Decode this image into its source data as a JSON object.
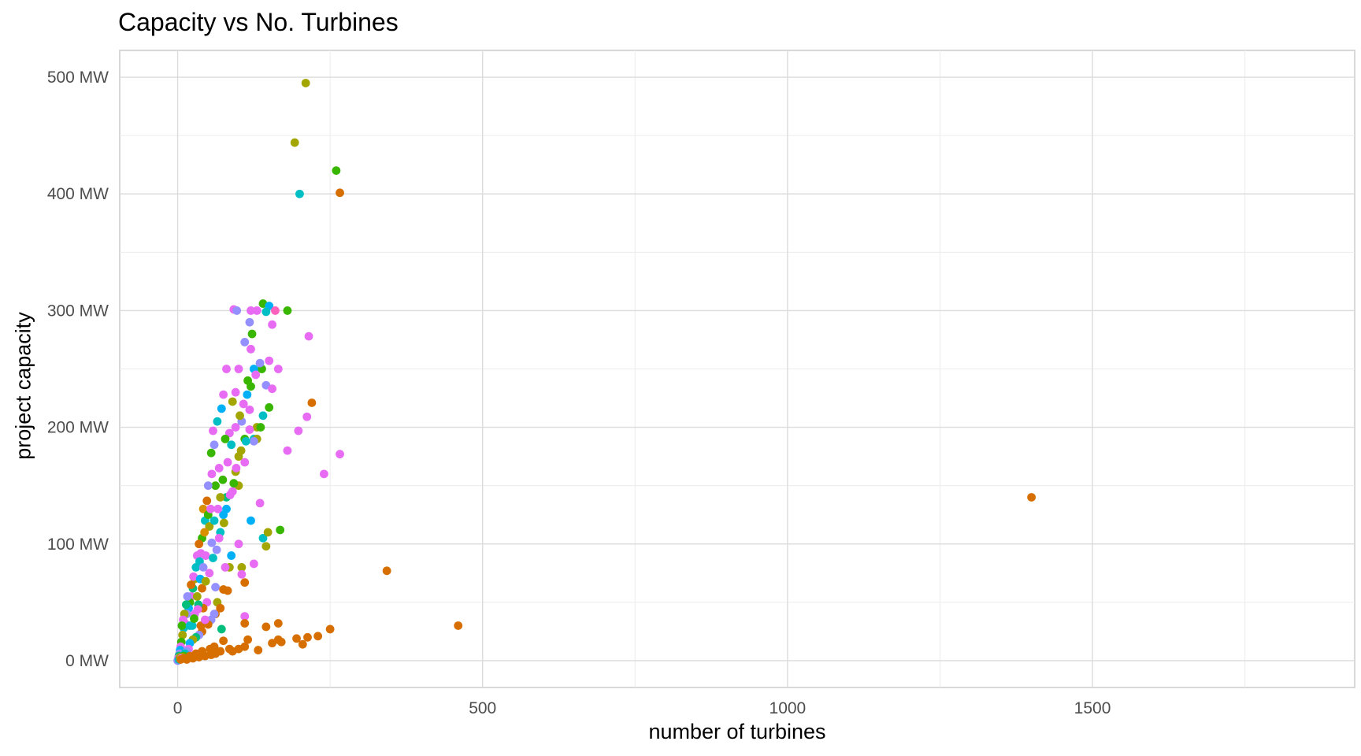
{
  "chart_data": {
    "type": "scatter",
    "title": "Capacity vs No. Turbines",
    "xlabel": "number of turbines",
    "ylabel": "project capacity",
    "xlim": [
      -95,
      1930
    ],
    "ylim": [
      -23,
      523
    ],
    "x_ticks": [
      0,
      500,
      1000,
      1500
    ],
    "x_tick_labels": [
      "0",
      "500",
      "1000",
      "1500"
    ],
    "y_ticks": [
      0,
      100,
      200,
      300,
      400,
      500
    ],
    "y_tick_labels": [
      "0 MW",
      "100 MW",
      "200 MW",
      "300 MW",
      "400 MW",
      "500 MW"
    ],
    "grid": true,
    "legend": "none",
    "palette": [
      "#f8766d",
      "#d89000",
      "#a3a500",
      "#39b600",
      "#00bf7d",
      "#00bfc4",
      "#00b0f6",
      "#9590ff",
      "#e76bf3",
      "#ff62bc",
      "#d66f00"
    ],
    "points": [
      [
        1400,
        140,
        "#d66f00"
      ],
      [
        460,
        30,
        "#d66f00"
      ],
      [
        343,
        77,
        "#d66f00"
      ],
      [
        210,
        495,
        "#a3a500"
      ],
      [
        192,
        444,
        "#a3a500"
      ],
      [
        260,
        420,
        "#39b600"
      ],
      [
        200,
        400,
        "#00bfc4"
      ],
      [
        266,
        401,
        "#d66f00"
      ],
      [
        180,
        300,
        "#39b600"
      ],
      [
        140,
        306,
        "#39b600"
      ],
      [
        150,
        304,
        "#00b0f6"
      ],
      [
        160,
        300,
        "#ff62bc"
      ],
      [
        145,
        299,
        "#00bfc4"
      ],
      [
        130,
        300,
        "#e76bf3"
      ],
      [
        120,
        300,
        "#e76bf3"
      ],
      [
        92,
        301,
        "#e76bf3"
      ],
      [
        97,
        300,
        "#9590ff"
      ],
      [
        215,
        278,
        "#e76bf3"
      ],
      [
        155,
        288,
        "#e76bf3"
      ],
      [
        118,
        290,
        "#9590ff"
      ],
      [
        110,
        273,
        "#9590ff"
      ],
      [
        122,
        280,
        "#39b600"
      ],
      [
        120,
        267,
        "#e76bf3"
      ],
      [
        150,
        257,
        "#e76bf3"
      ],
      [
        165,
        250,
        "#e76bf3"
      ],
      [
        138,
        250,
        "#39b600"
      ],
      [
        125,
        250,
        "#00b0f6"
      ],
      [
        100,
        250,
        "#e76bf3"
      ],
      [
        80,
        250,
        "#e76bf3"
      ],
      [
        145,
        236,
        "#9590ff"
      ],
      [
        155,
        233,
        "#e76bf3"
      ],
      [
        115,
        240,
        "#39b600"
      ],
      [
        95,
        230,
        "#e76bf3"
      ],
      [
        75,
        228,
        "#e76bf3"
      ],
      [
        220,
        221,
        "#d66f00"
      ],
      [
        212,
        209,
        "#e76bf3"
      ],
      [
        198,
        197,
        "#e76bf3"
      ],
      [
        180,
        180,
        "#e76bf3"
      ],
      [
        266,
        177,
        "#e76bf3"
      ],
      [
        240,
        160,
        "#e76bf3"
      ],
      [
        150,
        217,
        "#39b600"
      ],
      [
        140,
        210,
        "#00bfc4"
      ],
      [
        130,
        200,
        "#a3a500"
      ],
      [
        125,
        190,
        "#00bfc4"
      ],
      [
        118,
        215,
        "#e76bf3"
      ],
      [
        105,
        205,
        "#9590ff"
      ],
      [
        110,
        190,
        "#39b600"
      ],
      [
        100,
        175,
        "#a3a500"
      ],
      [
        90,
        222,
        "#a3a500"
      ],
      [
        85,
        195,
        "#e76bf3"
      ],
      [
        78,
        190,
        "#39b600"
      ],
      [
        72,
        216,
        "#00b0f6"
      ],
      [
        65,
        205,
        "#00bfc4"
      ],
      [
        60,
        185,
        "#9590ff"
      ],
      [
        55,
        178,
        "#39b600"
      ],
      [
        58,
        197,
        "#e76bf3"
      ],
      [
        68,
        165,
        "#e76bf3"
      ],
      [
        95,
        162,
        "#a3a500"
      ],
      [
        110,
        170,
        "#e76bf3"
      ],
      [
        100,
        150,
        "#a3a500"
      ],
      [
        90,
        145,
        "#e76bf3"
      ],
      [
        80,
        140,
        "#00bf7d"
      ],
      [
        75,
        125,
        "#00b0f6"
      ],
      [
        70,
        110,
        "#00bfc4"
      ],
      [
        62,
        150,
        "#39b600"
      ],
      [
        56,
        160,
        "#e76bf3"
      ],
      [
        50,
        150,
        "#9590ff"
      ],
      [
        48,
        137,
        "#d66f00"
      ],
      [
        42,
        130,
        "#d89000"
      ],
      [
        45,
        120,
        "#00bfc4"
      ],
      [
        52,
        115,
        "#a3a500"
      ],
      [
        40,
        105,
        "#39b600"
      ],
      [
        35,
        100,
        "#d66f00"
      ],
      [
        38,
        92,
        "#e76bf3"
      ],
      [
        32,
        90,
        "#e76bf3"
      ],
      [
        30,
        80,
        "#00bfc4"
      ],
      [
        28,
        70,
        "#a3a500"
      ],
      [
        25,
        62,
        "#00bf7d"
      ],
      [
        22,
        55,
        "#e76bf3"
      ],
      [
        20,
        50,
        "#39b600"
      ],
      [
        18,
        45,
        "#00b0f6"
      ],
      [
        15,
        40,
        "#9590ff"
      ],
      [
        12,
        32,
        "#e76bf3"
      ],
      [
        10,
        28,
        "#00bfc4"
      ],
      [
        8,
        22,
        "#a3a500"
      ],
      [
        6,
        16,
        "#39b600"
      ],
      [
        5,
        12,
        "#e76bf3"
      ],
      [
        4,
        9,
        "#00b0f6"
      ],
      [
        3,
        6,
        "#9590ff"
      ],
      [
        2,
        4,
        "#00bf7d"
      ],
      [
        1,
        2,
        "#e76bf3"
      ],
      [
        0,
        0,
        "#9590ff"
      ],
      [
        2,
        1,
        "#00bfc4"
      ],
      [
        4,
        3,
        "#a3a500"
      ],
      [
        88,
        90,
        "#00b0f6"
      ],
      [
        100,
        100,
        "#e76bf3"
      ],
      [
        85,
        80,
        "#a3a500"
      ],
      [
        78,
        80,
        "#e76bf3"
      ],
      [
        105,
        80,
        "#a3a500"
      ],
      [
        125,
        83,
        "#e76bf3"
      ],
      [
        110,
        67,
        "#d66f00"
      ],
      [
        105,
        74,
        "#e76bf3"
      ],
      [
        135,
        135,
        "#e76bf3"
      ],
      [
        120,
        120,
        "#00b0f6"
      ],
      [
        140,
        105,
        "#00bfc4"
      ],
      [
        148,
        110,
        "#a3a500"
      ],
      [
        145,
        98,
        "#a3a500"
      ],
      [
        168,
        112,
        "#39b600"
      ],
      [
        62,
        63,
        "#9590ff"
      ],
      [
        65,
        50,
        "#a3a500"
      ],
      [
        62,
        40,
        "#d66f00"
      ],
      [
        75,
        61,
        "#d66f00"
      ],
      [
        70,
        45,
        "#d66f00"
      ],
      [
        72,
        27,
        "#00bf7d"
      ],
      [
        60,
        40,
        "#9590ff"
      ],
      [
        55,
        35,
        "#9590ff"
      ],
      [
        48,
        50,
        "#e76bf3"
      ],
      [
        42,
        45,
        "#d66f00"
      ],
      [
        38,
        30,
        "#d66f00"
      ],
      [
        40,
        25,
        "#d66f00"
      ],
      [
        35,
        22,
        "#9590ff"
      ],
      [
        30,
        20,
        "#00bf7d"
      ],
      [
        25,
        18,
        "#a3a500"
      ],
      [
        20,
        15,
        "#00b0f6"
      ],
      [
        18,
        10,
        "#e76bf3"
      ],
      [
        15,
        8,
        "#9590ff"
      ],
      [
        12,
        6,
        "#00bfc4"
      ],
      [
        10,
        4,
        "#39b600"
      ],
      [
        8,
        3,
        "#a3a500"
      ],
      [
        6,
        2,
        "#e76bf3"
      ],
      [
        110,
        38,
        "#e76bf3"
      ],
      [
        110,
        32,
        "#d66f00"
      ],
      [
        145,
        29,
        "#d66f00"
      ],
      [
        165,
        32,
        "#d66f00"
      ],
      [
        250,
        27,
        "#d66f00"
      ],
      [
        230,
        21,
        "#d66f00"
      ],
      [
        213,
        20,
        "#d66f00"
      ],
      [
        195,
        19,
        "#d66f00"
      ],
      [
        205,
        14,
        "#d66f00"
      ],
      [
        165,
        18,
        "#d66f00"
      ],
      [
        155,
        15,
        "#d66f00"
      ],
      [
        170,
        16,
        "#d66f00"
      ],
      [
        132,
        9,
        "#d66f00"
      ],
      [
        115,
        18,
        "#d66f00"
      ],
      [
        110,
        12,
        "#d66f00"
      ],
      [
        100,
        10,
        "#d66f00"
      ],
      [
        85,
        10,
        "#d66f00"
      ],
      [
        75,
        17,
        "#d66f00"
      ],
      [
        70,
        8,
        "#d66f00"
      ],
      [
        60,
        12,
        "#d66f00"
      ],
      [
        55,
        5,
        "#d66f00"
      ],
      [
        45,
        4,
        "#d66f00"
      ],
      [
        40,
        8,
        "#d66f00"
      ],
      [
        35,
        3,
        "#d66f00"
      ],
      [
        30,
        6,
        "#d66f00"
      ],
      [
        25,
        2,
        "#d66f00"
      ],
      [
        20,
        4,
        "#d66f00"
      ],
      [
        15,
        1,
        "#d66f00"
      ],
      [
        10,
        2,
        "#d66f00"
      ],
      [
        5,
        1,
        "#d66f00"
      ],
      [
        53,
        10,
        "#d66f00"
      ],
      [
        62,
        6,
        "#d66f00"
      ],
      [
        90,
        8,
        "#d66f00"
      ],
      [
        50,
        31,
        "#d66f00"
      ],
      [
        45,
        35,
        "#e76bf3"
      ],
      [
        82,
        60,
        "#d66f00"
      ],
      [
        56,
        101,
        "#9590ff"
      ],
      [
        60,
        120,
        "#00bfc4"
      ],
      [
        66,
        130,
        "#e76bf3"
      ],
      [
        70,
        140,
        "#a3a500"
      ],
      [
        74,
        155,
        "#39b600"
      ],
      [
        82,
        170,
        "#e76bf3"
      ],
      [
        88,
        185,
        "#00bfc4"
      ],
      [
        95,
        200,
        "#e76bf3"
      ],
      [
        102,
        210,
        "#a3a500"
      ],
      [
        108,
        220,
        "#e76bf3"
      ],
      [
        114,
        228,
        "#00b0f6"
      ],
      [
        120,
        235,
        "#39b600"
      ],
      [
        128,
        245,
        "#e76bf3"
      ],
      [
        135,
        255,
        "#9590ff"
      ],
      [
        44,
        110,
        "#d89000"
      ],
      [
        50,
        125,
        "#39b600"
      ],
      [
        54,
        130,
        "#e76bf3"
      ],
      [
        36,
        85,
        "#00bfc4"
      ],
      [
        26,
        72,
        "#e76bf3"
      ],
      [
        22,
        65,
        "#d66f00"
      ],
      [
        16,
        55,
        "#9590ff"
      ],
      [
        14,
        48,
        "#00bf7d"
      ],
      [
        11,
        40,
        "#a3a500"
      ],
      [
        9,
        35,
        "#e76bf3"
      ],
      [
        7,
        30,
        "#39b600"
      ],
      [
        24,
        30,
        "#00bfc4"
      ],
      [
        28,
        40,
        "#e76bf3"
      ],
      [
        32,
        55,
        "#a3a500"
      ],
      [
        37,
        70,
        "#00b0f6"
      ],
      [
        42,
        80,
        "#9590ff"
      ],
      [
        46,
        90,
        "#e76bf3"
      ],
      [
        40,
        62,
        "#d66f00"
      ],
      [
        34,
        48,
        "#00bf7d"
      ],
      [
        130,
        190,
        "#a3a500"
      ],
      [
        136,
        200,
        "#39b600"
      ],
      [
        125,
        188,
        "#9590ff"
      ],
      [
        118,
        198,
        "#e76bf3"
      ],
      [
        112,
        188,
        "#00bfc4"
      ],
      [
        104,
        180,
        "#a3a500"
      ],
      [
        96,
        165,
        "#e76bf3"
      ],
      [
        92,
        152,
        "#39b600"
      ],
      [
        86,
        142,
        "#e76bf3"
      ],
      [
        80,
        130,
        "#00b0f6"
      ],
      [
        76,
        118,
        "#a3a500"
      ],
      [
        68,
        105,
        "#e76bf3"
      ],
      [
        64,
        95,
        "#9590ff"
      ],
      [
        58,
        88,
        "#00bfc4"
      ],
      [
        52,
        75,
        "#e76bf3"
      ],
      [
        46,
        68,
        "#a3a500"
      ],
      [
        20,
        30,
        "#00bfc4"
      ],
      [
        27,
        36,
        "#39b600"
      ],
      [
        33,
        44,
        "#e76bf3"
      ]
    ]
  }
}
